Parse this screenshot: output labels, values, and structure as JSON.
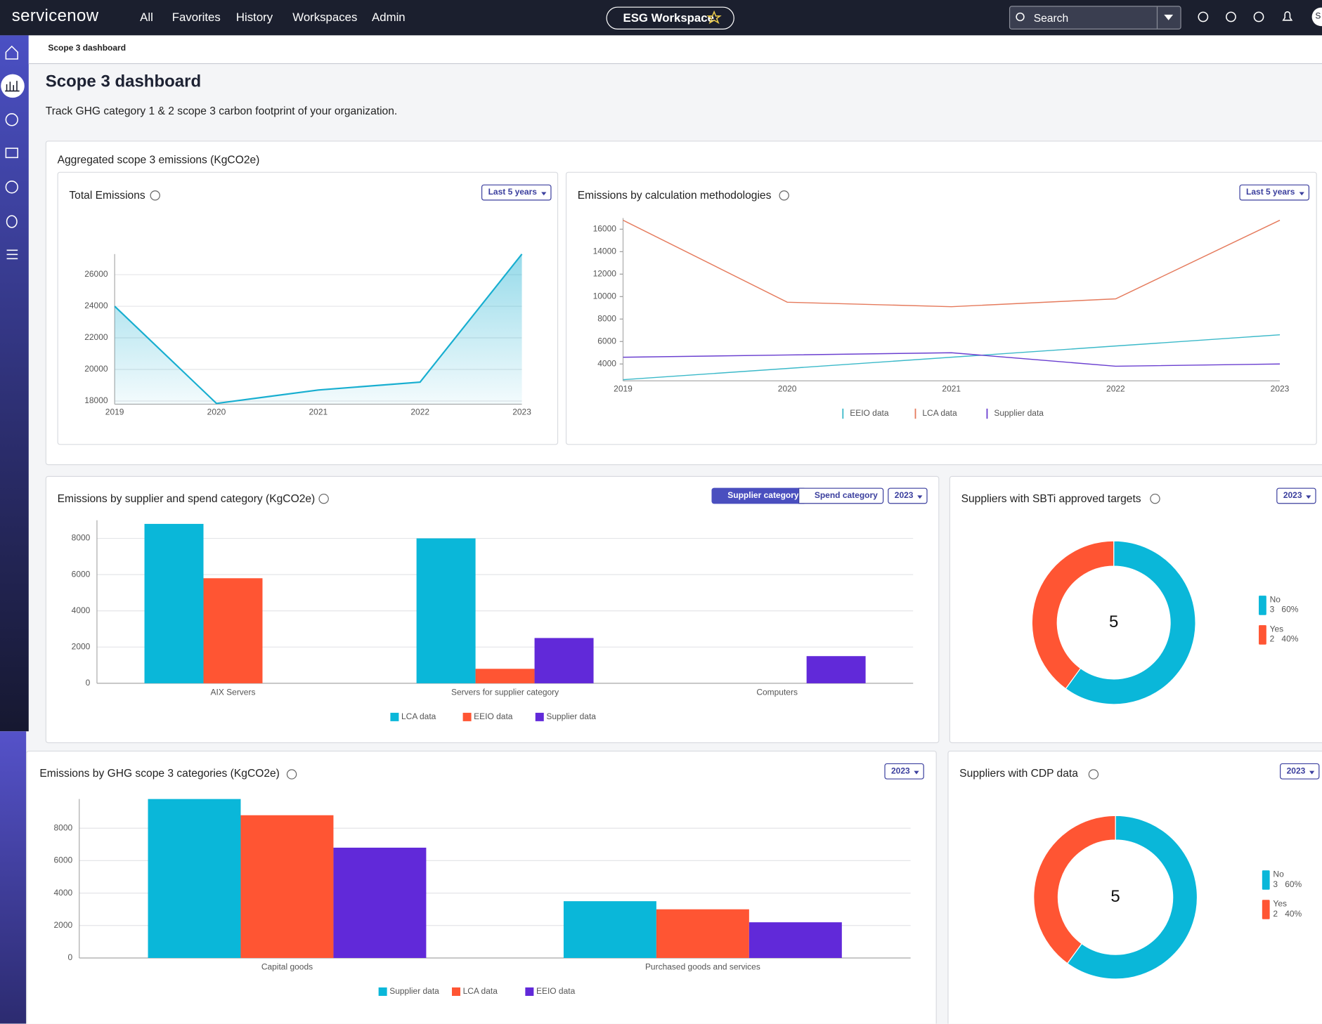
{
  "nav": {
    "brand": "servicenow",
    "items": [
      "All",
      "Favorites",
      "History",
      "Workspaces",
      "Admin"
    ],
    "workspace": "ESG Workspace",
    "search": "Search",
    "avatar": "S"
  },
  "breadcrumb": "Scope 3 dashboard",
  "page": {
    "title": "Scope 3 dashboard",
    "subtitle": "Track GHG category 1 & 2 scope 3 carbon footprint of your organization.",
    "section": "Aggregated scope 3 emissions (KgCO2e)"
  },
  "chart_data": [
    {
      "type": "area",
      "title": "Total Emissions",
      "filter": "Last 5 years",
      "categories": [
        "2019",
        "2020",
        "2021",
        "2022",
        "2023"
      ],
      "values": [
        24000,
        17850,
        18700,
        19200,
        27300
      ],
      "color": "#17aed0",
      "ylim": [
        17800,
        27300
      ],
      "yticks": [
        18000,
        20000,
        22000,
        24000,
        26000
      ],
      "grid": true
    },
    {
      "type": "line",
      "title": "Emissions by calculation methodologies",
      "filter": "Last 5 years",
      "categories": [
        "2019",
        "2020",
        "2021",
        "2022",
        "2023"
      ],
      "series": [
        {
          "name": "EEIO data",
          "color": "#3bb9c9",
          "values": [
            2600,
            3600,
            4600,
            5600,
            6600
          ]
        },
        {
          "name": "LCA data",
          "color": "#e57a5c",
          "values": [
            16800,
            9500,
            9100,
            9800,
            16800
          ]
        },
        {
          "name": "Supplier data",
          "color": "#6a3fd0",
          "values": [
            4600,
            4800,
            5000,
            3800,
            4000
          ]
        }
      ],
      "ylim": [
        2500,
        17000
      ],
      "yticks": [
        4000,
        6000,
        8000,
        10000,
        12000,
        14000,
        16000
      ],
      "grid": false
    },
    {
      "type": "bar",
      "title": "Emissions by supplier and spend category (KgCO2e)",
      "toggles": [
        "Supplier category",
        "Spend category"
      ],
      "filter": "2023",
      "categories": [
        "AIX Servers",
        "Servers for supplier category",
        "Computers"
      ],
      "series": [
        {
          "name": "LCA data",
          "color": "#0ab7d9",
          "values": [
            8800,
            8000,
            0
          ]
        },
        {
          "name": "EEIO data",
          "color": "#ff5533",
          "values": [
            5800,
            800,
            0
          ]
        },
        {
          "name": "Supplier data",
          "color": "#6129d9",
          "values": [
            0,
            2500,
            1500
          ]
        }
      ],
      "ylim": [
        0,
        9000
      ],
      "yticks": [
        0,
        2000,
        4000,
        6000,
        8000
      ],
      "grid": true
    },
    {
      "type": "donut",
      "title": "Suppliers with SBTi approved targets",
      "filter": "2023",
      "total": 5,
      "categories": [
        "No",
        "Yes"
      ],
      "values": [
        3,
        2
      ],
      "shares": [
        "60%",
        "40%"
      ],
      "colors": [
        "#0ab7d9",
        "#ff5533"
      ]
    },
    {
      "type": "bar",
      "title": "Emissions by GHG scope 3 categories (KgCO2e)",
      "filter": "2023",
      "categories": [
        "Capital goods",
        "Purchased goods and services"
      ],
      "series": [
        {
          "name": "Supplier data",
          "color": "#0ab7d9",
          "values": [
            9800,
            3500
          ]
        },
        {
          "name": "LCA data",
          "color": "#ff5533",
          "values": [
            8800,
            3000
          ]
        },
        {
          "name": "EEIO data",
          "color": "#6129d9",
          "values": [
            6800,
            2200
          ]
        }
      ],
      "ylim": [
        0,
        9800
      ],
      "yticks": [
        0,
        2000,
        4000,
        6000,
        8000
      ],
      "grid": true
    },
    {
      "type": "donut",
      "title": "Suppliers with CDP data",
      "filter": "2023",
      "total": 5,
      "categories": [
        "No",
        "Yes"
      ],
      "values": [
        3,
        2
      ],
      "shares": [
        "60%",
        "40%"
      ],
      "colors": [
        "#0ab7d9",
        "#ff5533"
      ]
    }
  ]
}
